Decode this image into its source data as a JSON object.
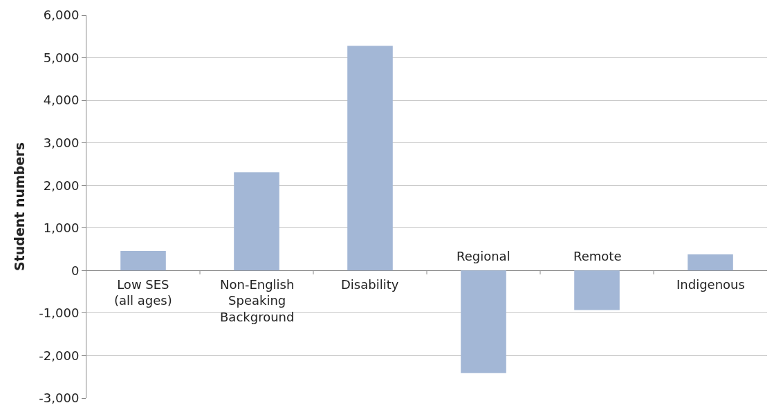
{
  "chart_data": {
    "type": "bar",
    "ylabel": "Student numbers",
    "categories": [
      "Low SES\n(all ages)",
      "Non-English\nSpeaking\nBackground",
      "Disability",
      "Regional",
      "Remote",
      "Indigenous"
    ],
    "values": [
      460,
      2310,
      5280,
      -2410,
      -930,
      380
    ],
    "color": "#a3b7d6",
    "ylim": [
      -3000,
      6000
    ],
    "yticks": [
      {
        "value": -3000,
        "label": "-3,000"
      },
      {
        "value": -2000,
        "label": "-2,000"
      },
      {
        "value": -1000,
        "label": "-1,000"
      },
      0,
      {
        "value": 1000,
        "label": "1,000"
      },
      {
        "value": 2000,
        "label": "2,000"
      },
      {
        "value": 3000,
        "label": "3,000"
      },
      {
        "value": 4000,
        "label": "4,000"
      },
      {
        "value": 5000,
        "label": "5,000"
      },
      {
        "value": 6000,
        "label": "6,000"
      }
    ],
    "grid": "y",
    "tick_labels": "y"
  }
}
